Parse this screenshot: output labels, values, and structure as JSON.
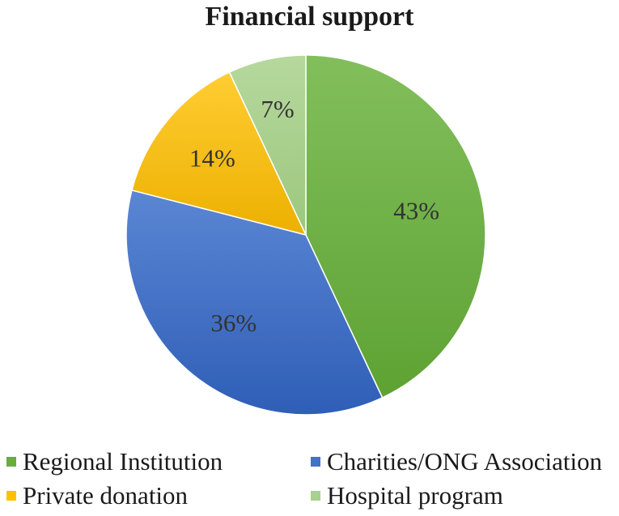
{
  "chart_data": {
    "type": "pie",
    "title": "Financial support",
    "slices": [
      {
        "label": "Regional Institution",
        "value": 43,
        "display": "43%",
        "color": "#6aad3f"
      },
      {
        "label": "Charities/ONG Association",
        "value": 36,
        "display": "36%",
        "color": "#4472c4"
      },
      {
        "label": "Private donation",
        "value": 14,
        "display": "14%",
        "color": "#ffc000"
      },
      {
        "label": "Hospital program",
        "value": 7,
        "display": "7%",
        "color": "#a9d18e"
      }
    ],
    "legend_position": "bottom"
  }
}
